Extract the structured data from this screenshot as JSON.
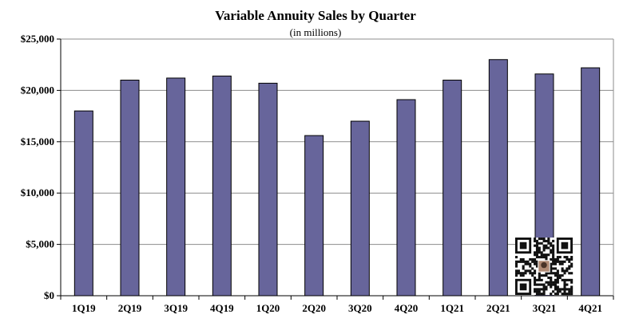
{
  "chart_data": {
    "type": "bar",
    "title": "Variable Annuity Sales by Quarter",
    "subtitle": "(in millions)",
    "xlabel": "",
    "ylabel": "",
    "categories": [
      "1Q19",
      "2Q19",
      "3Q19",
      "4Q19",
      "1Q20",
      "2Q20",
      "3Q20",
      "4Q20",
      "1Q21",
      "2Q21",
      "3Q21",
      "4Q21"
    ],
    "values": [
      18000,
      21000,
      21200,
      21400,
      20700,
      15600,
      17000,
      19100,
      21000,
      23000,
      21600,
      22200
    ],
    "ylim": [
      0,
      25000
    ],
    "yticks": [
      0,
      5000,
      10000,
      15000,
      20000,
      25000
    ],
    "ytick_labels": [
      "$0",
      "$5,000",
      "$10,000",
      "$15,000",
      "$20,000",
      "$25,000"
    ],
    "grid": true,
    "legend": "none",
    "colors": {
      "bar": "#67659b",
      "bar_edge": "#000000",
      "grid": "#8c8c8c"
    }
  }
}
